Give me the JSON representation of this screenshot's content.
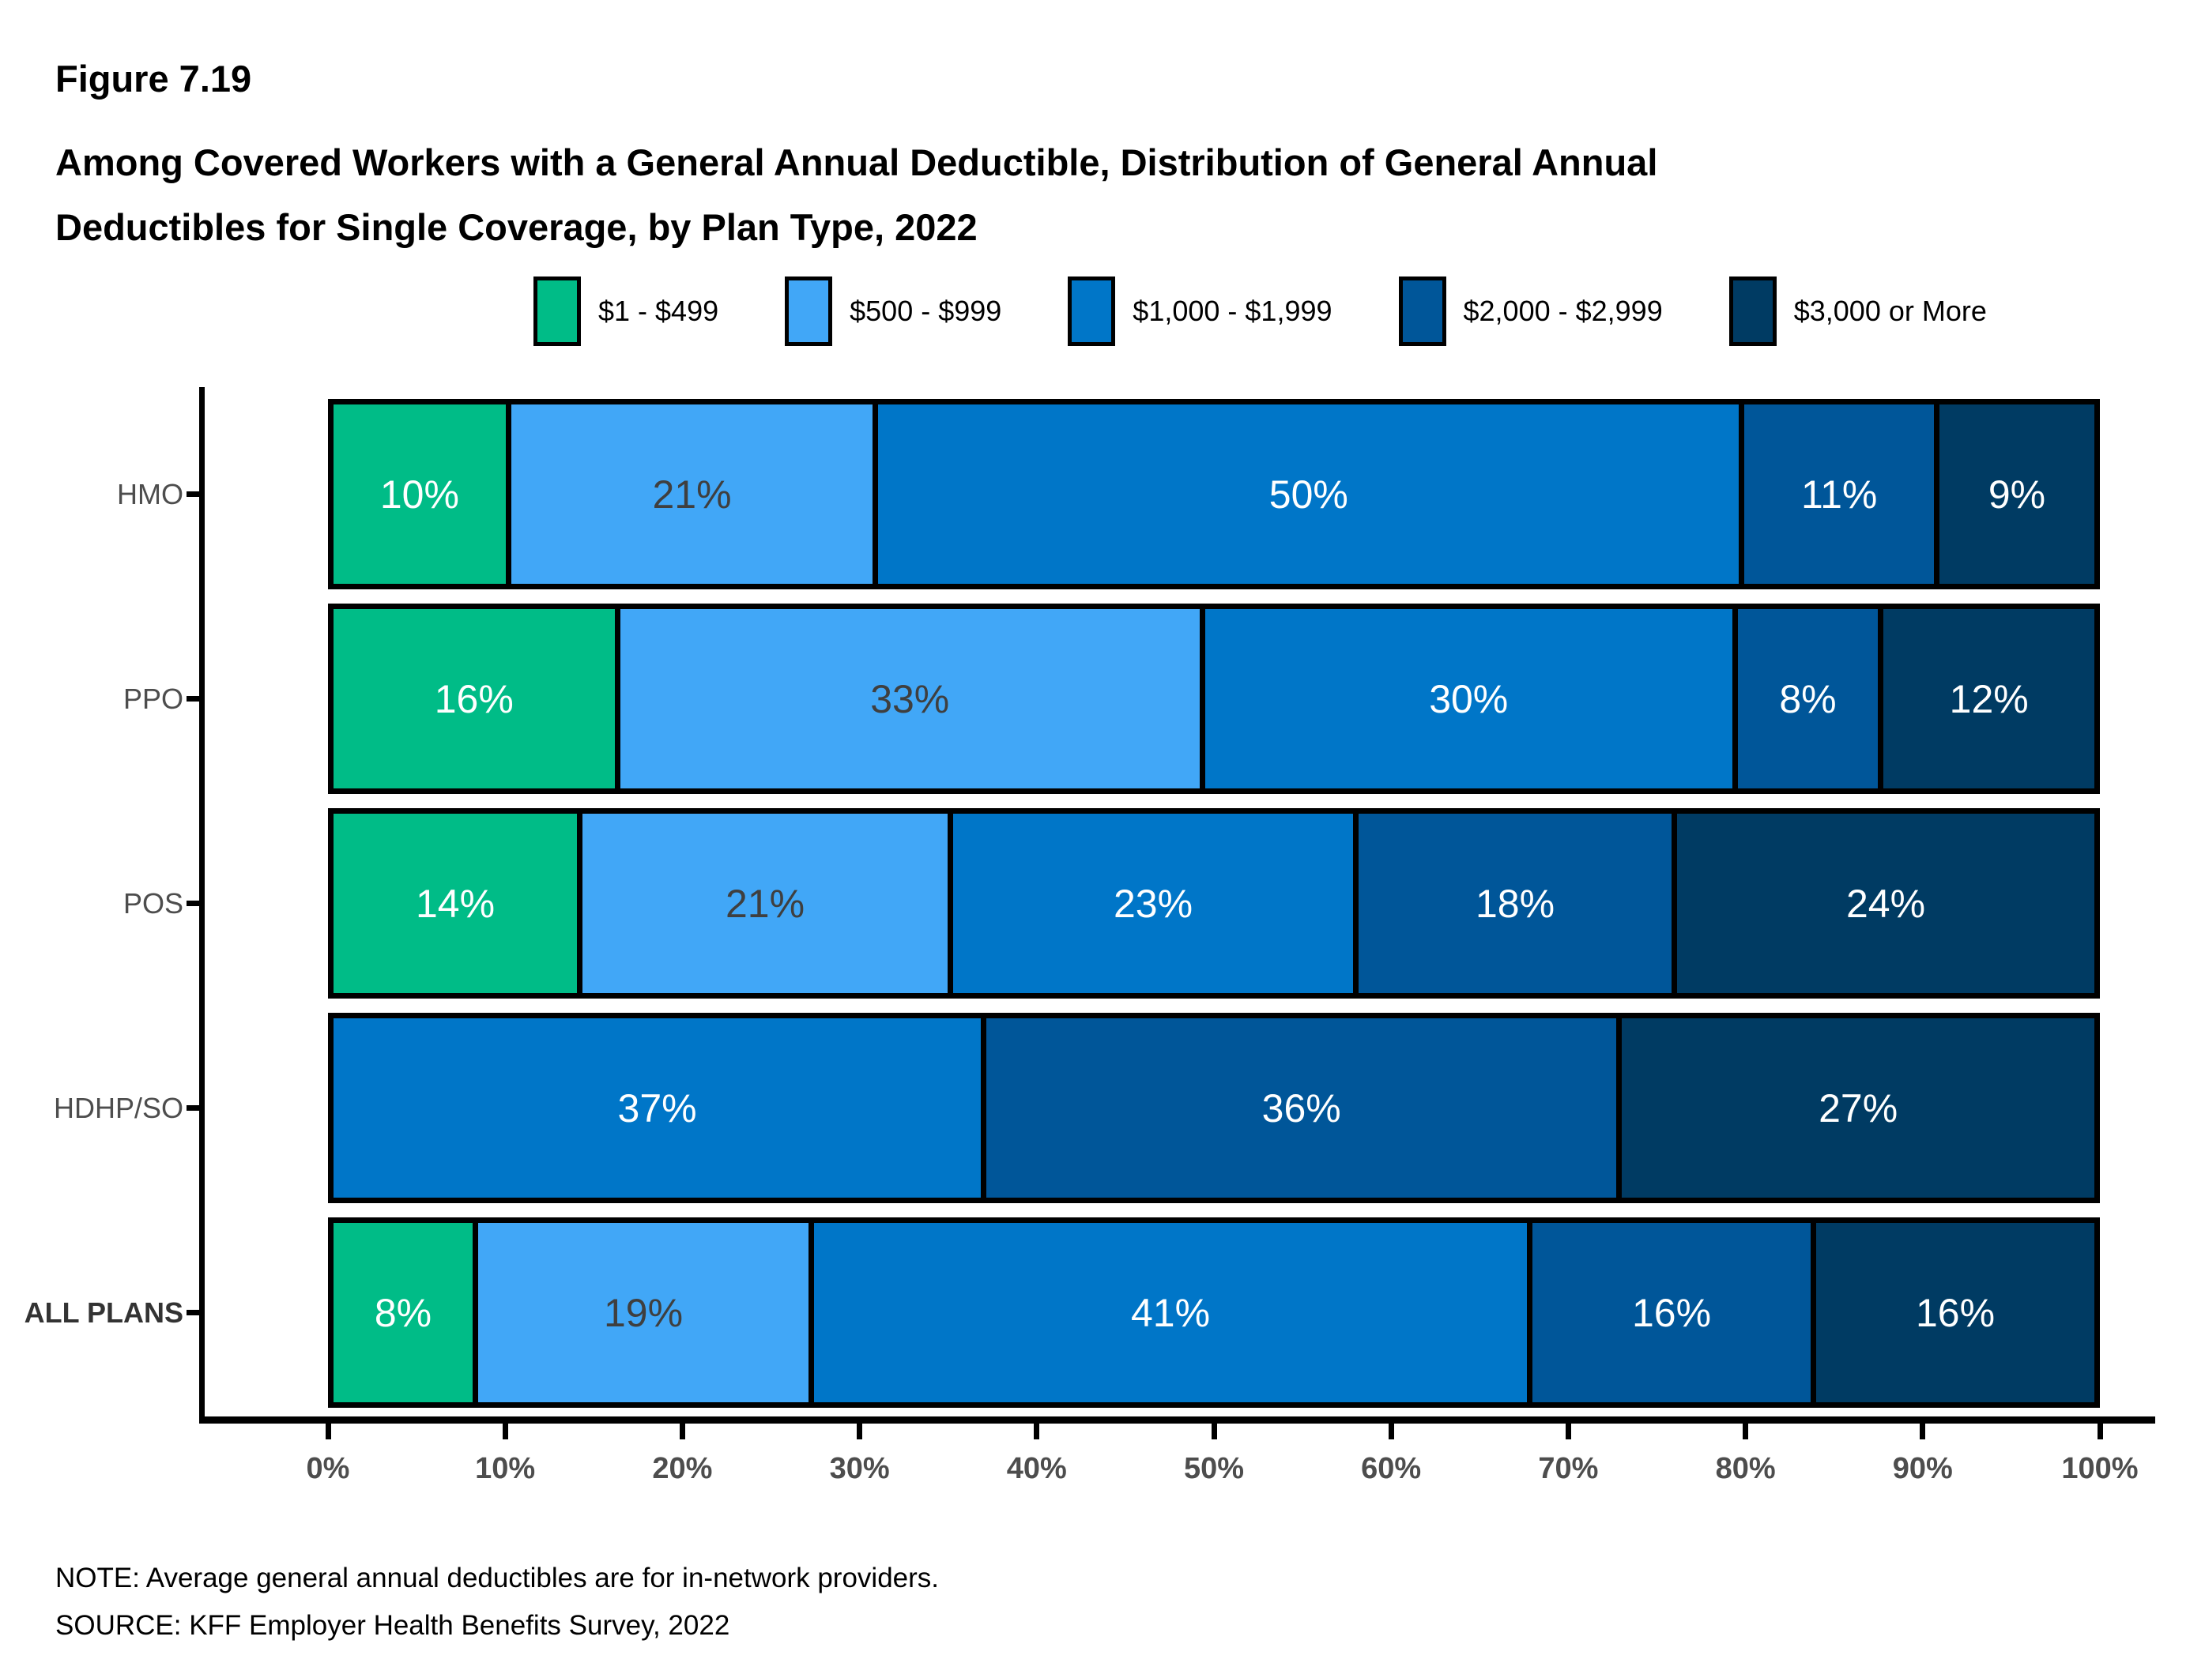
{
  "figure": {
    "label": "Figure 7.19",
    "title": "Among Covered Workers with a General Annual Deductible, Distribution of General Annual\nDeductibles for Single Coverage, by Plan Type, 2022"
  },
  "note": "NOTE: Average general annual deductibles are for in-network providers.",
  "source": "SOURCE: KFF Employer Health Benefits Survey, 2022",
  "chart_data": {
    "type": "bar",
    "orientation": "horizontal",
    "stacked": true,
    "grid": false,
    "legend_position": "top",
    "value_suffix": "%",
    "categories": [
      "HMO",
      "PPO",
      "POS",
      "HDHP/SO",
      "ALL PLANS"
    ],
    "bold_categories": [
      "ALL PLANS"
    ],
    "series": [
      {
        "name": "$1 - $499",
        "color": "#00BC87",
        "label_color": "#ffffff",
        "values": [
          10,
          16,
          14,
          0,
          8
        ]
      },
      {
        "name": "$500 - $999",
        "color": "#41A7F7",
        "label_color": "#3f3f3f",
        "values": [
          21,
          33,
          21,
          0,
          19
        ]
      },
      {
        "name": "$1,000 - $1,999",
        "color": "#0076C8",
        "label_color": "#ffffff",
        "values": [
          50,
          30,
          23,
          37,
          41
        ]
      },
      {
        "name": "$2,000 - $2,999",
        "color": "#005699",
        "label_color": "#ffffff",
        "values": [
          11,
          8,
          18,
          36,
          16
        ]
      },
      {
        "name": "$3,000 or More",
        "color": "#003B63",
        "label_color": "#ffffff",
        "values": [
          9,
          12,
          24,
          27,
          16
        ]
      }
    ],
    "x_axis": {
      "min": 0,
      "max": 100,
      "ticks": [
        "0%",
        "10%",
        "20%",
        "30%",
        "40%",
        "50%",
        "60%",
        "70%",
        "80%",
        "90%",
        "100%"
      ]
    }
  }
}
